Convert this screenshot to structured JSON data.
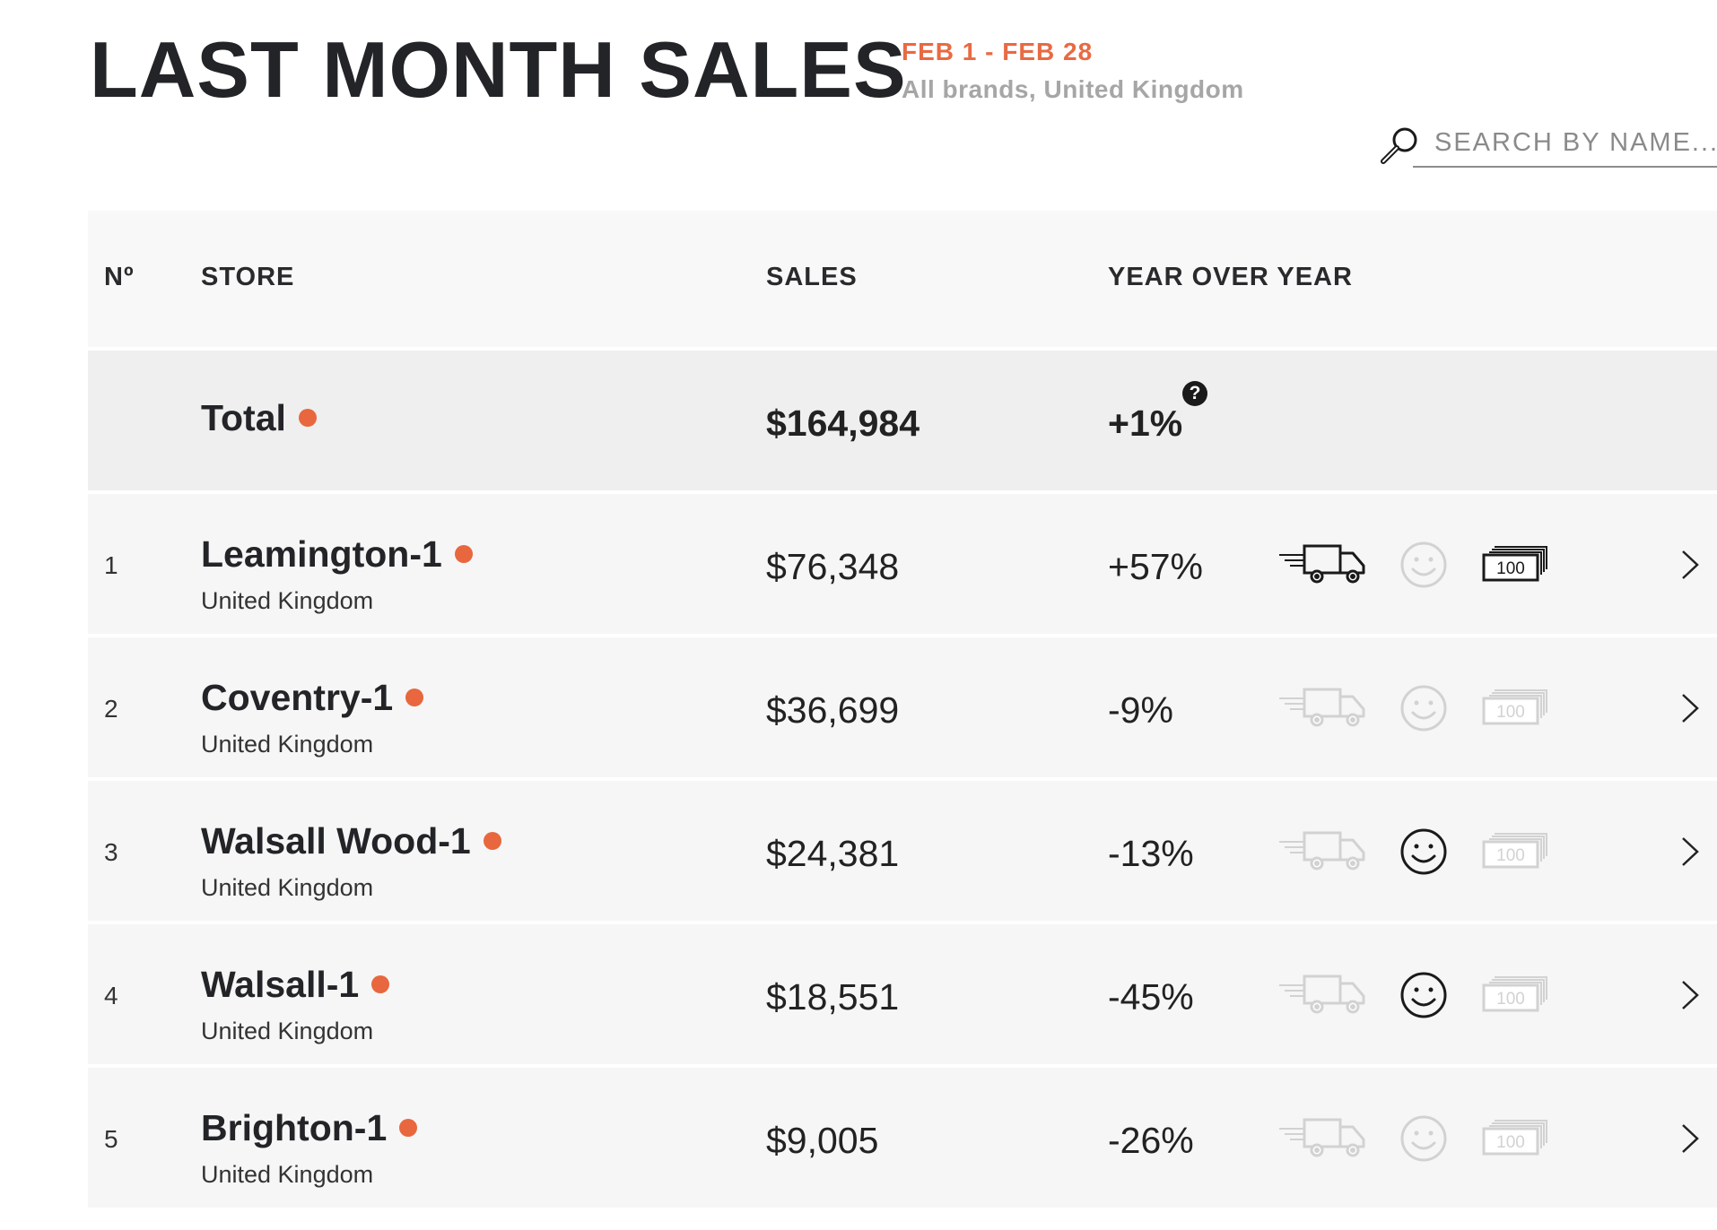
{
  "header": {
    "title": "LAST MONTH SALES",
    "date_range": "FEB 1 - FEB 28",
    "scope": "All brands, United Kingdom"
  },
  "search": {
    "placeholder": "SEARCH BY NAME...",
    "icon": "magnifier-icon"
  },
  "table": {
    "columns": {
      "no": "Nº",
      "store": "STORE",
      "sales": "SALES",
      "yoy": "YEAR OVER YEAR"
    },
    "total": {
      "name": "Total",
      "sales": "$164,984",
      "yoy": "+1%",
      "help_glyph": "?"
    },
    "cash_label": "100",
    "rows": [
      {
        "no": "1",
        "name": "Leamington-1",
        "country": "United Kingdom",
        "sales": "$76,348",
        "yoy": "+57%",
        "delivery_active": true,
        "smile_active": false,
        "cash_active": true
      },
      {
        "no": "2",
        "name": "Coventry-1",
        "country": "United Kingdom",
        "sales": "$36,699",
        "yoy": "-9%",
        "delivery_active": false,
        "smile_active": false,
        "cash_active": false
      },
      {
        "no": "3",
        "name": "Walsall Wood-1",
        "country": "United Kingdom",
        "sales": "$24,381",
        "yoy": "-13%",
        "delivery_active": false,
        "smile_active": true,
        "cash_active": false
      },
      {
        "no": "4",
        "name": "Walsall-1",
        "country": "United Kingdom",
        "sales": "$18,551",
        "yoy": "-45%",
        "delivery_active": false,
        "smile_active": true,
        "cash_active": false
      },
      {
        "no": "5",
        "name": "Brighton-1",
        "country": "United Kingdom",
        "sales": "$9,005",
        "yoy": "-26%",
        "delivery_active": false,
        "smile_active": false,
        "cash_active": false
      }
    ]
  },
  "colors": {
    "accent": "#e8673e",
    "active_icon": "#1a1a1a",
    "inactive_icon": "#d2d2d2"
  }
}
